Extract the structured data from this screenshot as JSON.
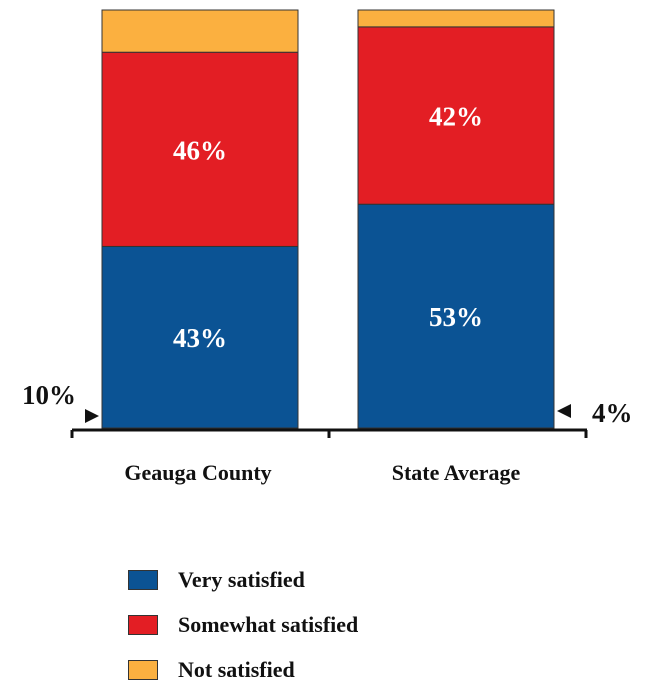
{
  "chart_data": {
    "type": "bar",
    "stacked": true,
    "percent": true,
    "categories": [
      "Geauga County",
      "State Average"
    ],
    "series": [
      {
        "name": "Very satisfied",
        "color": "#0b5394",
        "values": [
          43,
          53
        ],
        "labels": [
          "43%",
          "53%"
        ]
      },
      {
        "name": "Somewhat satisfied",
        "color": "#e31e24",
        "values": [
          46,
          42
        ],
        "labels": [
          "46%",
          "42%"
        ]
      },
      {
        "name": "Not satisfied",
        "color": "#fbb040",
        "values": [
          10,
          4
        ],
        "labels": [
          "10%",
          "4%"
        ]
      }
    ],
    "ylim": [
      0,
      99
    ],
    "grid": false,
    "legend_position": "bottom"
  }
}
